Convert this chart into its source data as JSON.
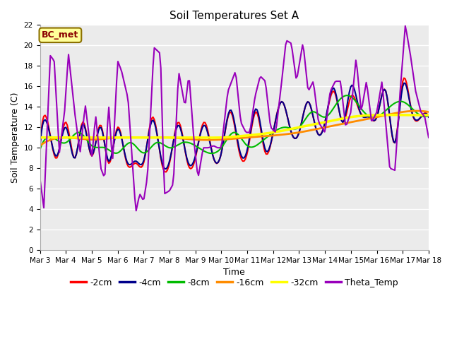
{
  "title": "Soil Temperatures Set A",
  "xlabel": "Time",
  "ylabel": "Soil Temperature (C)",
  "ylim": [
    0,
    22
  ],
  "yticks": [
    0,
    2,
    4,
    6,
    8,
    10,
    12,
    14,
    16,
    18,
    20,
    22
  ],
  "date_labels": [
    "Mar 3",
    "Mar 4",
    "Mar 5",
    "Mar 6",
    "Mar 7",
    "Mar 8",
    "Mar 9",
    "Mar 10",
    "Mar 11",
    "Mar 12",
    "Mar 13",
    "Mar 14",
    "Mar 15",
    "Mar 16",
    "Mar 17",
    "Mar 18"
  ],
  "annotation_text": "BC_met",
  "annotation_color": "#8B0000",
  "annotation_bg": "#FFFF99",
  "annotation_border": "#8B7000",
  "bg_color": "#FFFFFF",
  "plot_bg": "#EBEBEB",
  "series_colors": [
    "#FF0000",
    "#00008B",
    "#00BB00",
    "#FF8C00",
    "#FFFF00",
    "#9900BB"
  ],
  "series_labels": [
    "-2cm",
    "-4cm",
    "-8cm",
    "-16cm",
    "-32cm",
    "Theta_Temp"
  ],
  "series_linewidths": [
    1.5,
    1.5,
    1.5,
    2.0,
    2.5,
    1.5
  ],
  "title_fontsize": 11,
  "tick_fontsize": 7.5,
  "ylabel_fontsize": 9,
  "xlabel_fontsize": 9,
  "legend_fontsize": 9,
  "theta_t": [
    0.0,
    0.15,
    0.4,
    0.55,
    0.75,
    0.95,
    1.1,
    1.35,
    1.55,
    1.75,
    2.0,
    2.15,
    2.35,
    2.5,
    2.65,
    2.8,
    3.0,
    3.15,
    3.4,
    3.7,
    3.85,
    4.0,
    4.15,
    4.4,
    4.65,
    4.8,
    5.0,
    5.15,
    5.35,
    5.6,
    5.75,
    5.95,
    6.1,
    6.3,
    6.5,
    6.7,
    6.85,
    7.0,
    7.25,
    7.55,
    7.75,
    7.95,
    8.1,
    8.3,
    8.5,
    8.7,
    8.9,
    9.1,
    9.3,
    9.5,
    9.7,
    9.9,
    10.15,
    10.35,
    10.55,
    10.75,
    11.0,
    11.2,
    11.4,
    11.6,
    11.8,
    12.0,
    12.2,
    12.4,
    12.6,
    12.8,
    13.0,
    13.2,
    13.5,
    13.7,
    13.9,
    14.1,
    14.3,
    14.5,
    14.7,
    14.85,
    15.0
  ],
  "theta_v": [
    7.0,
    4.1,
    19.0,
    18.5,
    9.5,
    13.5,
    19.2,
    13.3,
    9.5,
    14.2,
    9.0,
    13.2,
    8.0,
    7.0,
    14.3,
    8.5,
    18.5,
    17.5,
    14.8,
    3.7,
    5.5,
    4.8,
    7.2,
    19.8,
    19.2,
    5.5,
    5.8,
    6.5,
    17.5,
    14.0,
    17.2,
    10.5,
    7.0,
    10.0,
    10.0,
    10.2,
    10.0,
    10.0,
    15.5,
    17.5,
    12.5,
    11.5,
    11.5,
    15.0,
    17.0,
    16.5,
    12.0,
    11.5,
    15.8,
    20.5,
    20.2,
    16.5,
    20.3,
    15.5,
    16.5,
    12.5,
    11.5,
    15.5,
    16.5,
    16.5,
    12.0,
    13.5,
    18.8,
    13.5,
    16.5,
    12.5,
    13.5,
    16.5,
    8.0,
    7.8,
    15.5,
    22.0,
    19.0,
    15.5,
    13.5,
    13.0,
    11.0
  ],
  "soil2_t": [
    0.0,
    0.3,
    0.65,
    1.0,
    1.35,
    1.65,
    2.0,
    2.35,
    2.65,
    3.0,
    3.35,
    3.7,
    4.0,
    4.35,
    4.7,
    5.0,
    5.35,
    5.7,
    6.0,
    6.35,
    6.7,
    7.0,
    7.35,
    7.7,
    8.0,
    8.35,
    8.7,
    9.0,
    9.35,
    9.7,
    10.0,
    10.35,
    10.7,
    11.0,
    11.35,
    11.7,
    12.0,
    12.35,
    12.7,
    13.0,
    13.35,
    13.7,
    14.0,
    14.35,
    14.7,
    15.0
  ],
  "soil2_v": [
    10.2,
    12.5,
    9.0,
    12.5,
    9.0,
    12.5,
    9.2,
    12.2,
    8.5,
    12.0,
    8.5,
    8.5,
    8.5,
    13.0,
    8.5,
    8.5,
    12.5,
    8.5,
    9.0,
    12.5,
    9.0,
    9.5,
    13.5,
    9.5,
    9.5,
    13.5,
    9.5,
    11.5,
    14.5,
    11.5,
    11.5,
    14.5,
    11.5,
    12.5,
    15.5,
    12.5,
    15.0,
    13.5,
    13.0,
    13.0,
    15.5,
    10.5,
    16.5,
    13.5,
    13.0,
    13.0
  ],
  "soil4_t": [
    0.0,
    0.3,
    0.65,
    1.0,
    1.35,
    1.65,
    2.0,
    2.35,
    2.65,
    3.0,
    3.35,
    3.7,
    4.0,
    4.35,
    4.7,
    5.0,
    5.35,
    5.7,
    6.0,
    6.35,
    6.7,
    7.0,
    7.35,
    7.7,
    8.0,
    8.35,
    8.7,
    9.0,
    9.35,
    9.7,
    10.0,
    10.35,
    10.7,
    11.0,
    11.35,
    11.7,
    12.0,
    12.35,
    12.7,
    13.0,
    13.35,
    13.7,
    14.0,
    14.35,
    14.7,
    15.0
  ],
  "soil4_v": [
    10.1,
    12.2,
    9.2,
    12.0,
    9.0,
    12.3,
    9.3,
    12.0,
    8.7,
    11.8,
    8.7,
    8.7,
    8.7,
    12.7,
    8.7,
    8.7,
    12.2,
    8.7,
    9.2,
    12.2,
    9.0,
    9.5,
    13.7,
    9.8,
    9.8,
    13.8,
    9.8,
    11.5,
    14.5,
    11.5,
    11.5,
    14.5,
    11.5,
    12.5,
    15.8,
    12.5,
    16.0,
    13.5,
    13.0,
    13.0,
    15.5,
    10.5,
    16.0,
    13.5,
    13.0,
    13.0
  ],
  "soil8_t": [
    0.0,
    0.5,
    1.0,
    1.5,
    2.0,
    2.5,
    3.0,
    3.5,
    4.0,
    4.5,
    5.0,
    5.5,
    6.0,
    6.5,
    7.0,
    7.5,
    8.0,
    8.5,
    9.0,
    9.5,
    10.0,
    10.5,
    11.0,
    11.5,
    12.0,
    12.5,
    13.0,
    13.5,
    14.0,
    14.5,
    15.0
  ],
  "soil8_v": [
    9.8,
    11.0,
    10.5,
    11.5,
    10.2,
    10.0,
    9.5,
    10.5,
    9.5,
    10.5,
    10.0,
    10.5,
    10.2,
    9.5,
    10.0,
    11.5,
    10.2,
    10.5,
    11.5,
    12.0,
    12.0,
    13.5,
    13.0,
    14.5,
    15.0,
    13.5,
    13.0,
    14.0,
    14.5,
    13.5,
    13.2
  ],
  "soil16_t": [
    0.0,
    1.0,
    2.0,
    3.0,
    4.0,
    5.0,
    6.0,
    7.0,
    8.0,
    9.0,
    10.0,
    11.0,
    12.0,
    13.0,
    14.0,
    15.0
  ],
  "soil16_v": [
    10.2,
    11.0,
    10.8,
    11.0,
    11.0,
    11.0,
    10.8,
    10.8,
    11.0,
    11.2,
    11.5,
    12.0,
    12.5,
    13.0,
    13.5,
    13.5
  ],
  "soil32_t": [
    0.0,
    1.0,
    2.0,
    3.0,
    4.0,
    5.0,
    6.0,
    7.0,
    8.0,
    9.0,
    10.0,
    11.0,
    12.0,
    13.0,
    14.0,
    15.0
  ],
  "soil32_v": [
    11.0,
    11.0,
    11.0,
    11.0,
    11.0,
    11.0,
    11.0,
    11.0,
    11.2,
    11.5,
    12.0,
    12.5,
    13.0,
    13.2,
    13.2,
    13.2
  ]
}
